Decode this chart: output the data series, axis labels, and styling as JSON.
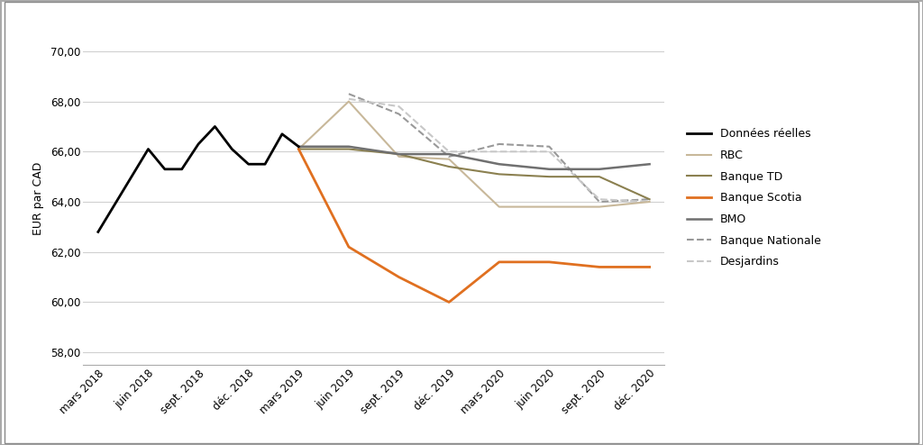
{
  "ylabel": "EUR par CAD",
  "xlabels": [
    "mars 2018",
    "juin 2018",
    "sept. 2018",
    "déc. 2018",
    "mars 2019",
    "juin 2019",
    "sept. 2019",
    "déc. 2019",
    "mars 2020",
    "juin 2020",
    "sept. 2020",
    "déc. 2020"
  ],
  "ylim": [
    57.5,
    70.8
  ],
  "yticks": [
    58.0,
    60.0,
    62.0,
    64.0,
    66.0,
    68.0,
    70.0
  ],
  "series": {
    "Données réelles": {
      "x": [
        0,
        1,
        1.33,
        1.67,
        2,
        2.33,
        2.67,
        3,
        3.33,
        3.67,
        4
      ],
      "y": [
        62.8,
        66.1,
        65.3,
        65.3,
        66.3,
        67.0,
        66.1,
        65.5,
        65.5,
        66.7,
        66.2
      ],
      "color": "#000000",
      "linestyle": "-",
      "linewidth": 2.0,
      "zorder": 5
    },
    "RBC": {
      "x": [
        4,
        5,
        6,
        7,
        8,
        9,
        10,
        11
      ],
      "y": [
        66.1,
        68.0,
        65.8,
        65.7,
        63.8,
        63.8,
        63.8,
        64.0
      ],
      "color": "#C8B89A",
      "linestyle": "-",
      "linewidth": 1.5,
      "zorder": 3
    },
    "Banque TD": {
      "x": [
        4,
        5,
        6,
        7,
        8,
        9,
        10,
        11
      ],
      "y": [
        66.1,
        66.1,
        65.9,
        65.4,
        65.1,
        65.0,
        65.0,
        64.1
      ],
      "color": "#8B8050",
      "linestyle": "-",
      "linewidth": 1.5,
      "zorder": 3
    },
    "Banque Scotia": {
      "x": [
        4,
        5,
        6,
        7,
        8,
        9,
        10,
        11
      ],
      "y": [
        66.1,
        62.2,
        61.0,
        60.0,
        61.6,
        61.6,
        61.4,
        61.4
      ],
      "color": "#E07020",
      "linestyle": "-",
      "linewidth": 2.0,
      "zorder": 4
    },
    "BMO": {
      "x": [
        4,
        5,
        6,
        7,
        8,
        9,
        10,
        11
      ],
      "y": [
        66.2,
        66.2,
        65.9,
        65.9,
        65.5,
        65.3,
        65.3,
        65.5
      ],
      "color": "#707070",
      "linestyle": "-",
      "linewidth": 1.8,
      "zorder": 3
    },
    "Banque Nationale": {
      "x": [
        5,
        6,
        7,
        8,
        9,
        10,
        11
      ],
      "y": [
        68.3,
        67.5,
        65.8,
        66.3,
        66.2,
        64.0,
        64.1
      ],
      "color": "#999999",
      "linestyle": "--",
      "linewidth": 1.5,
      "zorder": 2
    },
    "Desjardins": {
      "x": [
        5,
        6,
        7,
        8,
        9,
        10,
        11
      ],
      "y": [
        68.1,
        67.8,
        66.0,
        66.0,
        66.0,
        64.1,
        64.0
      ],
      "color": "#C8C8C8",
      "linestyle": "--",
      "linewidth": 1.5,
      "zorder": 2
    }
  },
  "background_color": "#ffffff",
  "grid_color": "#d0d0d0",
  "border_color": "#aaaaaa",
  "legend_order": [
    "Données réelles",
    "RBC",
    "Banque TD",
    "Banque Scotia",
    "BMO",
    "Banque Nationale",
    "Desjardins"
  ]
}
